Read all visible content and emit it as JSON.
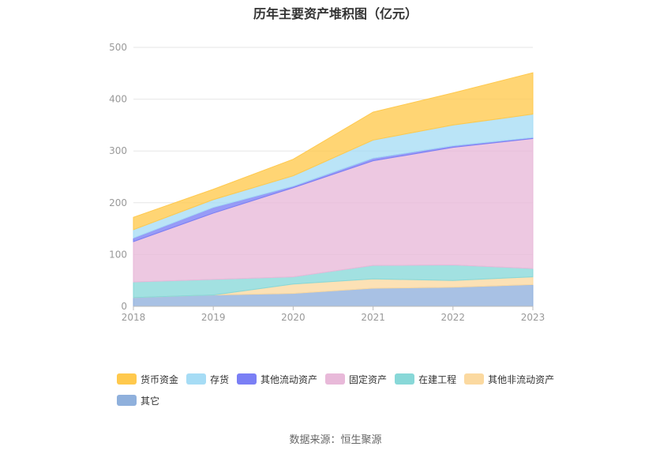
{
  "title": "历年主要资产堆积图（亿元）",
  "source": "数据来源：恒生聚源",
  "chart_data": {
    "type": "area",
    "stacked": true,
    "x": [
      "2018",
      "2019",
      "2020",
      "2021",
      "2022",
      "2023"
    ],
    "ylim": [
      0,
      500
    ],
    "yticks": [
      0,
      100,
      200,
      300,
      400,
      500
    ],
    "grid": true,
    "legend_position": "bottom-left",
    "series": [
      {
        "name": "其它",
        "color": "#8fb0dc",
        "values": [
          17,
          22,
          25,
          35,
          37,
          42
        ]
      },
      {
        "name": "其他非流动资产",
        "color": "#fbd9a0",
        "values": [
          0,
          0,
          18,
          18,
          13,
          15
        ]
      },
      {
        "name": "在建工程",
        "color": "#88d8d8",
        "values": [
          30,
          30,
          14,
          26,
          30,
          16
        ]
      },
      {
        "name": "固定资产",
        "color": "#e8b9d9",
        "values": [
          78,
          128,
          172,
          202,
          227,
          251
        ]
      },
      {
        "name": "其他流动资产",
        "color": "#7a7ff5",
        "values": [
          7,
          11,
          3,
          5,
          3,
          2
        ]
      },
      {
        "name": "存货",
        "color": "#a6dcf5",
        "values": [
          16,
          15,
          20,
          35,
          40,
          45
        ]
      },
      {
        "name": "货币资金",
        "color": "#ffc94d",
        "values": [
          24,
          20,
          32,
          54,
          62,
          80
        ]
      }
    ],
    "legend_order": [
      "货币资金",
      "存货",
      "其他流动资产",
      "固定资产",
      "在建工程",
      "其他非流动资产",
      "其它"
    ]
  }
}
